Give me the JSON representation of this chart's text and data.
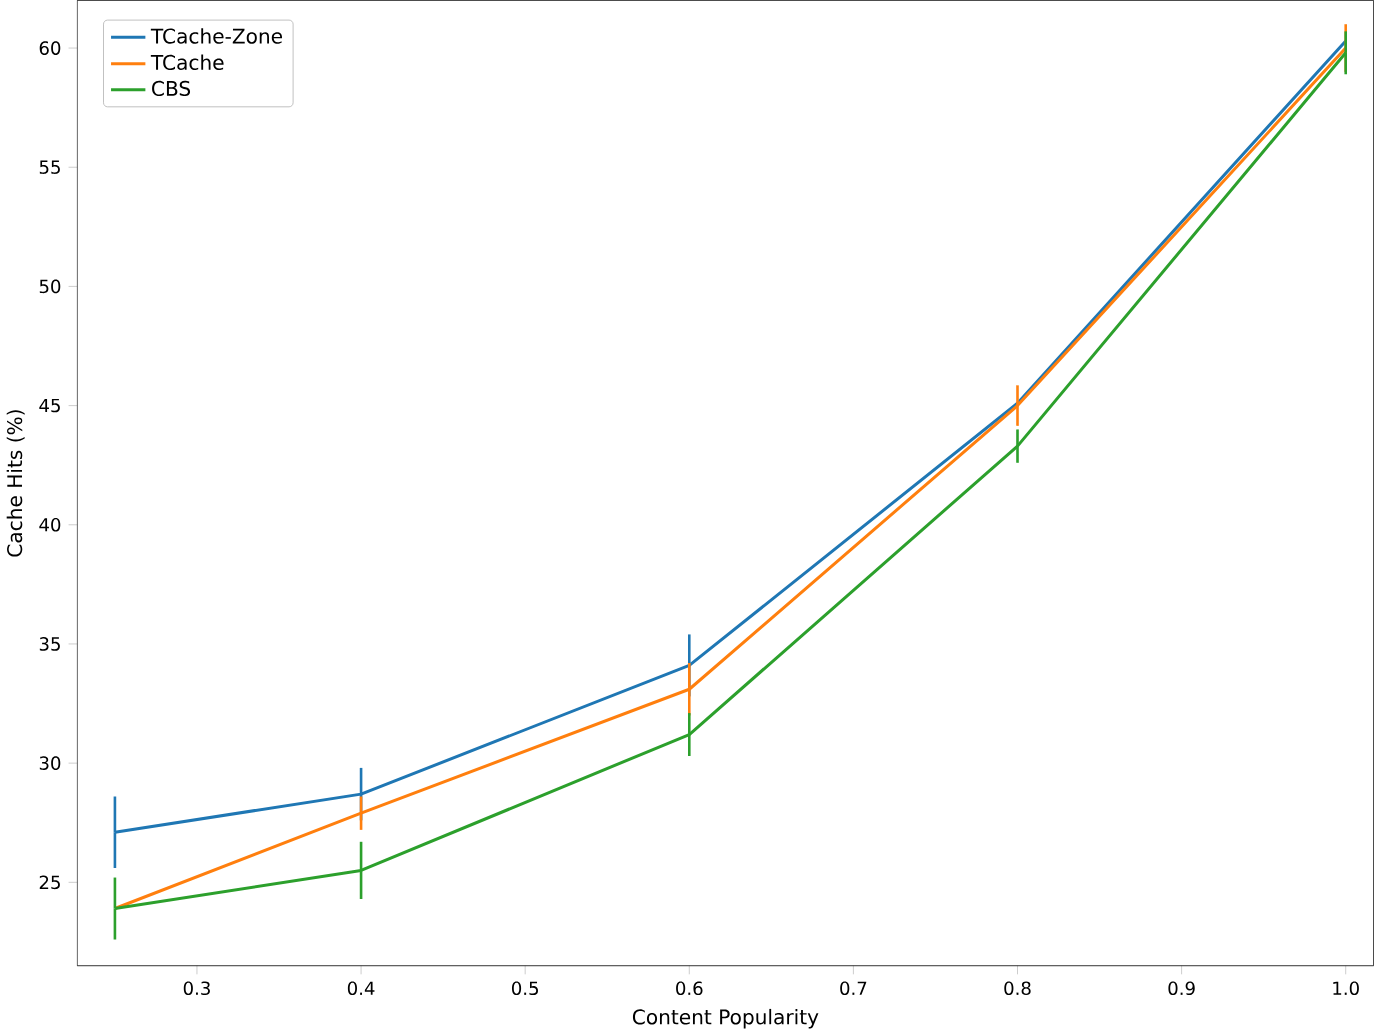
{
  "chart_data": {
    "type": "line",
    "xlabel": "Content Popularity",
    "ylabel": "Cache Hits (%)",
    "x": [
      0.25,
      0.4,
      0.6,
      0.8,
      1.0
    ],
    "series": [
      {
        "name": "TCache-Zone",
        "color": "#1f77b4",
        "values": [
          27.1,
          28.7,
          34.1,
          45.1,
          60.3
        ],
        "errors": [
          1.5,
          1.1,
          1.3,
          null,
          null
        ]
      },
      {
        "name": "TCache",
        "color": "#ff7f0e",
        "values": [
          23.9,
          27.9,
          33.1,
          45.0,
          60.0
        ],
        "errors": [
          null,
          0.7,
          1.1,
          0.85,
          1.0
        ]
      },
      {
        "name": "CBS",
        "color": "#2ca02c",
        "values": [
          23.9,
          25.5,
          31.2,
          43.3,
          59.8
        ],
        "errors": [
          1.3,
          1.2,
          0.9,
          0.7,
          0.9
        ]
      }
    ],
    "xlim": [
      0.227,
      1.017
    ],
    "ylim": [
      21.5,
      62
    ],
    "xticks": [
      0.3,
      0.4,
      0.5,
      0.6,
      0.7,
      0.8,
      0.9,
      {
        "value": 1.0,
        "label": "1.0"
      }
    ],
    "yticks": [
      25,
      30,
      35,
      40,
      45,
      50,
      55,
      60
    ],
    "legend": "top left",
    "grid": false,
    "marker": "none",
    "line_style": "solid"
  }
}
